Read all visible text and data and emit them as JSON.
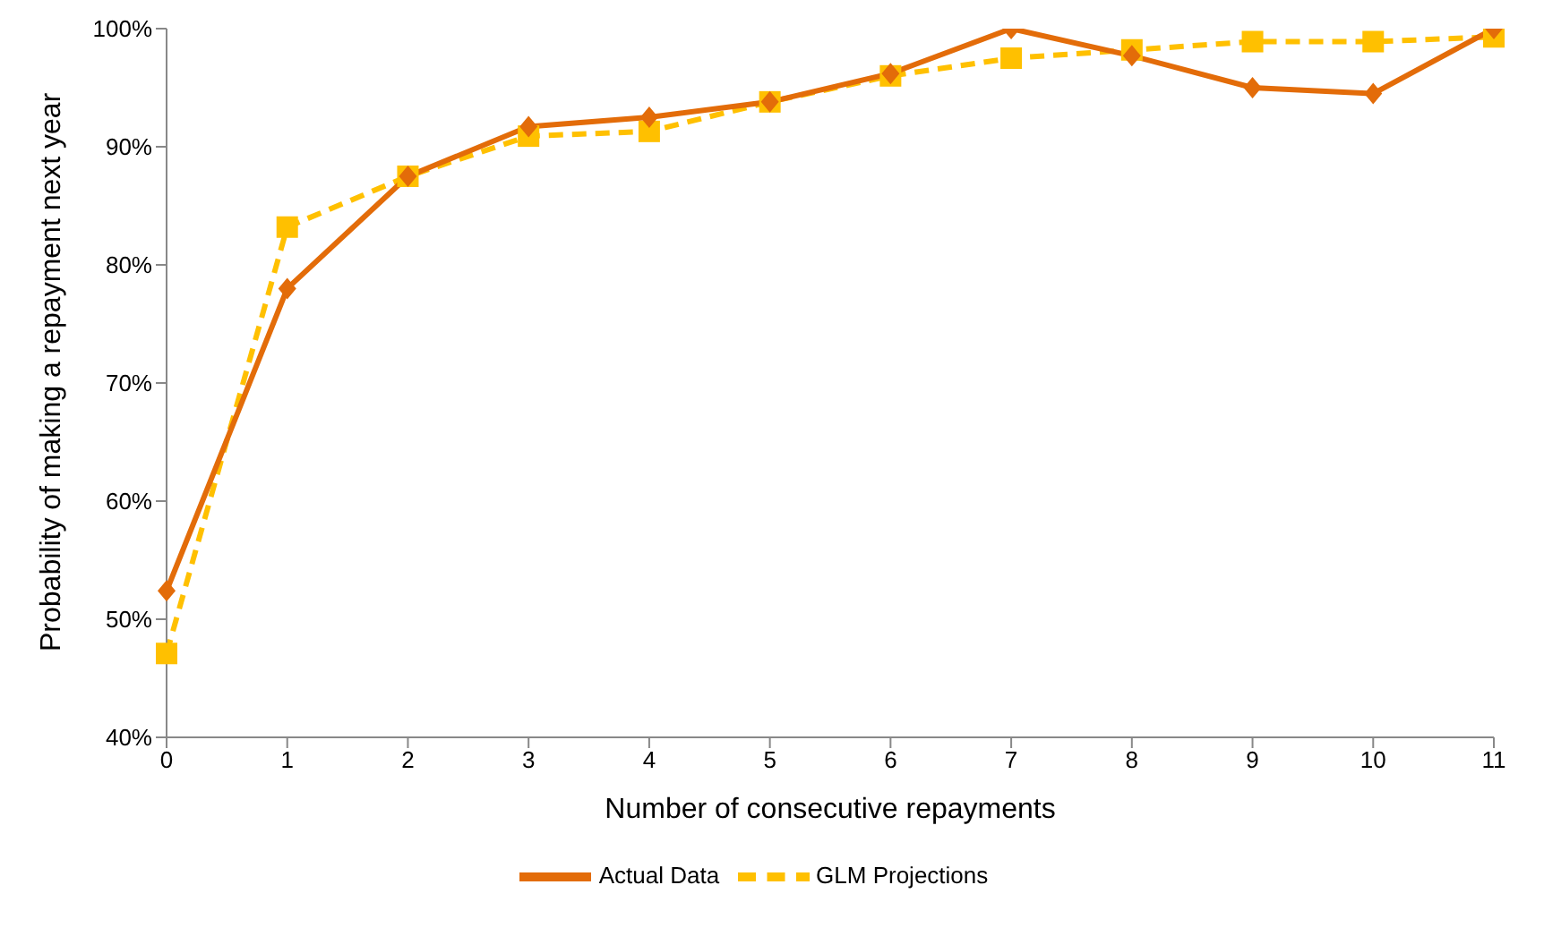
{
  "chart_data": {
    "type": "line",
    "xlabel": "Number of consecutive repayments",
    "ylabel": "Probability of making a repayment next year",
    "categories": [
      "0",
      "1",
      "2",
      "3",
      "4",
      "5",
      "6",
      "7",
      "8",
      "9",
      "10",
      "11"
    ],
    "series": [
      {
        "name": "Actual Data",
        "color": "#e36c09",
        "marker": "diamond",
        "line_style": "solid",
        "values": [
          52.4,
          78,
          87.5,
          91.7,
          92.5,
          93.8,
          96.2,
          100,
          97.7,
          95,
          94.5,
          100
        ]
      },
      {
        "name": "GLM Projections",
        "color": "#ffc000",
        "marker": "square",
        "line_style": "dashed",
        "values": [
          47.1,
          83.2,
          87.5,
          90.9,
          91.3,
          93.8,
          96,
          97.5,
          98.2,
          98.9,
          98.9,
          99.3
        ]
      }
    ],
    "ylim": [
      40,
      100
    ],
    "yticks": [
      {
        "value": 40,
        "label": "40%"
      },
      {
        "value": 50,
        "label": "50%"
      },
      {
        "value": 60,
        "label": "60%"
      },
      {
        "value": 70,
        "label": "70%"
      },
      {
        "value": 80,
        "label": "80%"
      },
      {
        "value": 90,
        "label": "90%"
      },
      {
        "value": 100,
        "label": "100%"
      }
    ],
    "grid": false,
    "legend": "bottom"
  }
}
